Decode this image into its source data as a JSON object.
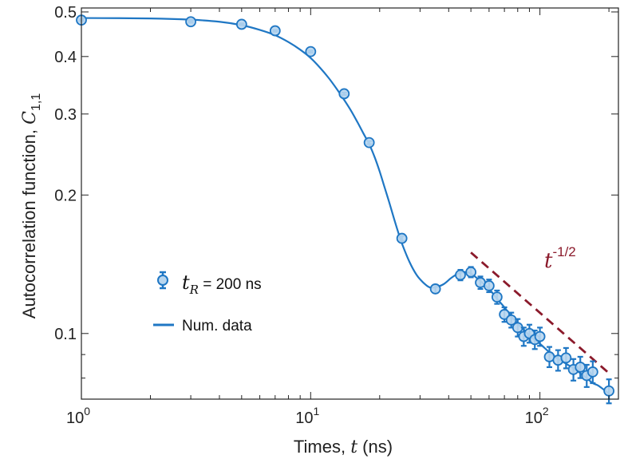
{
  "chart_data": {
    "type": "scatter",
    "xscale": "log",
    "yscale": "log",
    "xlim": [
      1,
      220
    ],
    "ylim": [
      0.072,
      0.51
    ],
    "xlabel": {
      "prefix": "Times, ",
      "var": "t",
      "suffix": " (ns)"
    },
    "ylabel": {
      "prefix": "Autocorrelation function, ",
      "var": "C",
      "sub": "1,1"
    },
    "x_ticks": [
      {
        "value": 1,
        "base": "10",
        "exp": "0"
      },
      {
        "value": 10,
        "base": "10",
        "exp": "1"
      },
      {
        "value": 100,
        "base": "10",
        "exp": "2"
      }
    ],
    "y_ticks": [
      {
        "value": 0.1,
        "label": "0.1"
      },
      {
        "value": 0.2,
        "label": "0.2"
      },
      {
        "value": 0.3,
        "label": "0.3"
      },
      {
        "value": 0.4,
        "label": "0.4"
      },
      {
        "value": 0.5,
        "label": "0.5"
      }
    ],
    "series": [
      {
        "name": "t_R = 200 ns",
        "kind": "points-with-errorbars",
        "color": "#1f77c4",
        "fill": "#b8d6ef",
        "x": [
          1,
          3,
          5,
          7,
          10,
          14,
          18,
          25,
          35,
          45,
          50,
          55,
          60,
          65,
          70,
          75,
          80,
          85,
          90,
          95,
          100,
          110,
          120,
          130,
          140,
          150,
          160,
          170,
          200
        ],
        "y": [
          0.48,
          0.476,
          0.47,
          0.455,
          0.41,
          0.332,
          0.26,
          0.161,
          0.125,
          0.134,
          0.136,
          0.129,
          0.127,
          0.12,
          0.11,
          0.107,
          0.103,
          0.0985,
          0.1,
          0.097,
          0.0985,
          0.089,
          0.0875,
          0.0885,
          0.0835,
          0.0845,
          0.081,
          0.0825,
          0.075
        ],
        "err": [
          0.002,
          0.002,
          0.002,
          0.002,
          0.002,
          0.002,
          0.002,
          0.002,
          0.0025,
          0.0035,
          0.0035,
          0.004,
          0.004,
          0.004,
          0.004,
          0.004,
          0.0045,
          0.0045,
          0.0045,
          0.0045,
          0.0045,
          0.0045,
          0.0045,
          0.0045,
          0.0045,
          0.0045,
          0.0045,
          0.0045,
          0.0045
        ]
      },
      {
        "name": "Num. data",
        "kind": "line",
        "color": "#1f77c4",
        "x": [
          1,
          2,
          3,
          4,
          5,
          6,
          7,
          8,
          9,
          10,
          11,
          12,
          13,
          14,
          15,
          16,
          17,
          18,
          19,
          20,
          21,
          22,
          23,
          24,
          25,
          27,
          29,
          31,
          33,
          35,
          38,
          41,
          44,
          47,
          50,
          55,
          60,
          65,
          70,
          75,
          80,
          85,
          90,
          100,
          110,
          120,
          130,
          140,
          150,
          160,
          170,
          180,
          200
        ],
        "y": [
          0.485,
          0.484,
          0.481,
          0.476,
          0.468,
          0.457,
          0.445,
          0.43,
          0.414,
          0.397,
          0.378,
          0.359,
          0.34,
          0.322,
          0.305,
          0.288,
          0.272,
          0.258,
          0.242,
          0.225,
          0.208,
          0.193,
          0.179,
          0.167,
          0.157,
          0.143,
          0.134,
          0.129,
          0.126,
          0.126,
          0.128,
          0.132,
          0.135,
          0.136,
          0.135,
          0.13,
          0.125,
          0.119,
          0.114,
          0.109,
          0.105,
          0.102,
          0.099,
          0.095,
          0.091,
          0.088,
          0.086,
          0.084,
          0.082,
          0.08,
          0.078,
          0.077,
          0.074
        ]
      },
      {
        "name": "t^-1/2 guide",
        "kind": "dashed-line",
        "color": "#8b1a2b",
        "x": [
          50,
          200
        ],
        "y": [
          0.15,
          0.082
        ]
      }
    ],
    "legend": {
      "position": "center-left",
      "entries": [
        {
          "var": "t",
          "sub": "R",
          "suffix": " = 200 ns"
        },
        {
          "label": "Num. data"
        }
      ]
    },
    "annotation": {
      "base": "t",
      "exponent": "-1/2",
      "color": "#8b1a2b"
    }
  }
}
